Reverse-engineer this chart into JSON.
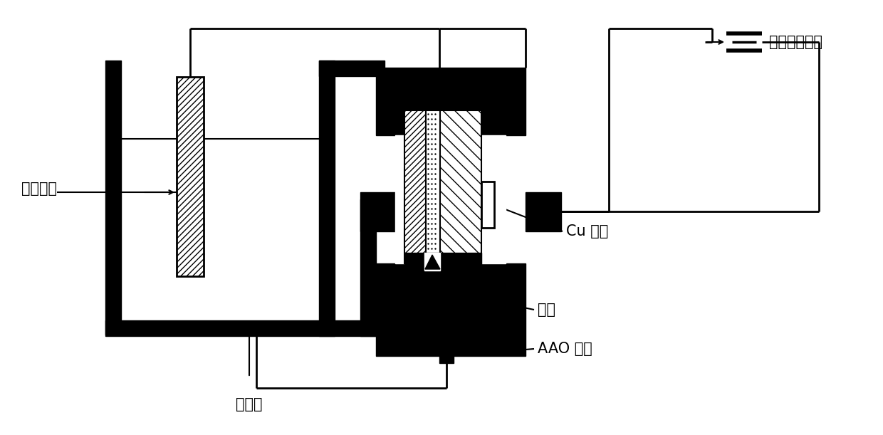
{
  "bg": "#ffffff",
  "black": "#000000",
  "white": "#ffffff",
  "labels": {
    "graphite": "石墨电极",
    "electrolyte": "电解液",
    "cu": "Cu 电极",
    "gasket": "垫圈",
    "aao": "AAO 模版",
    "dc": "直流稳压电源"
  },
  "fontsize": 15
}
